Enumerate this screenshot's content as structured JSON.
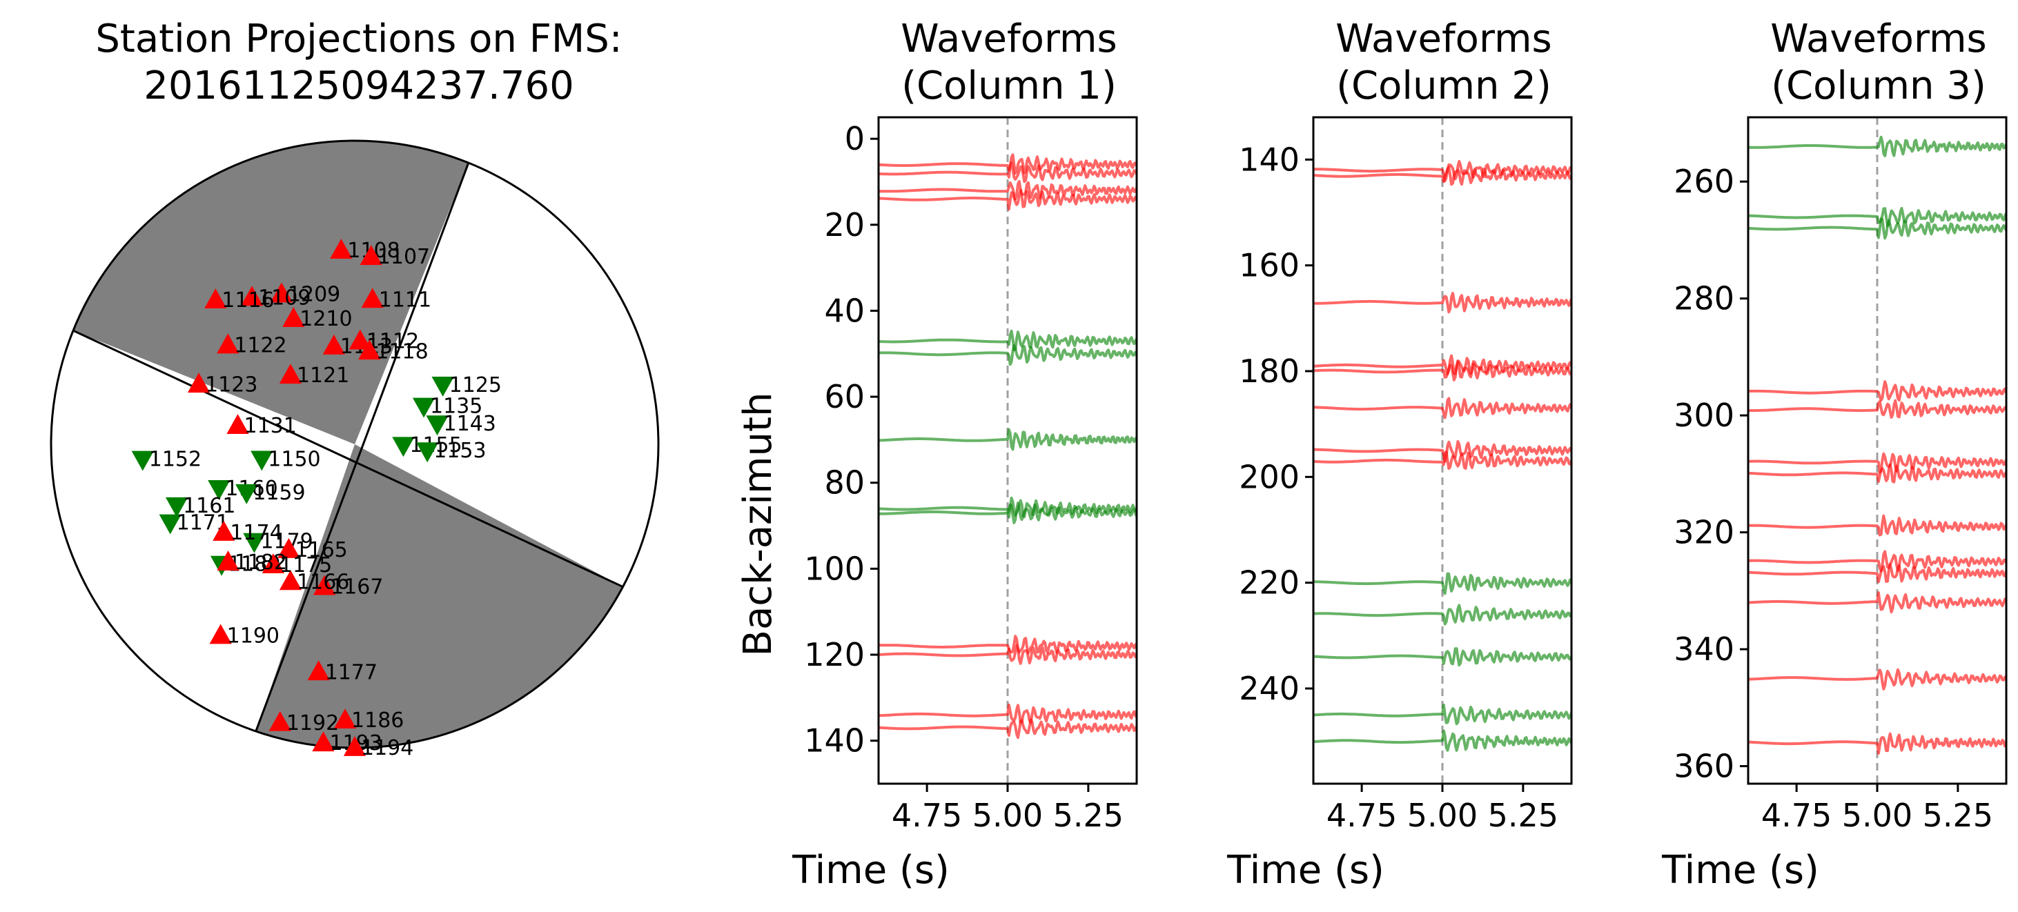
{
  "colors": {
    "compression": "#ff0000",
    "dilatation": "#008000",
    "shade": "#808080",
    "pick_line": "#a0a0a0"
  },
  "beachball": {
    "title": "Station Projections on FMS:",
    "subtitle": "20161125094237.760",
    "stations": [
      {
        "name": "1209",
        "pol": "up",
        "az": -26,
        "r": 0.55
      },
      {
        "name": "1108",
        "pol": "up",
        "az": -4,
        "r": 0.64
      },
      {
        "name": "1107",
        "pol": "up",
        "az": 5,
        "r": 0.62
      },
      {
        "name": "1111",
        "pol": "up",
        "az": 7,
        "r": 0.48
      },
      {
        "name": "1109",
        "pol": "up",
        "az": -35,
        "r": 0.59
      },
      {
        "name": "1210",
        "pol": "up",
        "az": -26,
        "r": 0.46
      },
      {
        "name": "1116",
        "pol": "up",
        "az": -44,
        "r": 0.66
      },
      {
        "name": "1113",
        "pol": "up",
        "az": -12,
        "r": 0.33
      },
      {
        "name": "1112",
        "pol": "up",
        "az": 3,
        "r": 0.34
      },
      {
        "name": "1118",
        "pol": "up",
        "az": 9,
        "r": 0.31
      },
      {
        "name": "1122",
        "pol": "up",
        "az": -52,
        "r": 0.53
      },
      {
        "name": "1121",
        "pol": "up",
        "az": -43,
        "r": 0.31
      },
      {
        "name": "1123",
        "pol": "up",
        "az": -69,
        "r": 0.55
      },
      {
        "name": "1131",
        "pol": "up",
        "az": -81,
        "r": 0.39
      },
      {
        "name": "1125",
        "pol": "down",
        "az": 56,
        "r": 0.35
      },
      {
        "name": "1135",
        "pol": "down",
        "az": 61,
        "r": 0.26
      },
      {
        "name": "1143",
        "pol": "down",
        "az": 76,
        "r": 0.28
      },
      {
        "name": "1155",
        "pol": "down",
        "az": 91,
        "r": 0.16
      },
      {
        "name": "1153",
        "pol": "down",
        "az": 95,
        "r": 0.24
      },
      {
        "name": "1152",
        "pol": "down",
        "az": -94,
        "r": 0.7
      },
      {
        "name": "1150",
        "pol": "down",
        "az": -99,
        "r": 0.31
      },
      {
        "name": "1160",
        "pol": "down",
        "az": -108,
        "r": 0.47
      },
      {
        "name": "1159",
        "pol": "down",
        "az": -114,
        "r": 0.39
      },
      {
        "name": "1161",
        "pol": "down",
        "az": -109,
        "r": 0.62
      },
      {
        "name": "1171",
        "pol": "down",
        "az": -113,
        "r": 0.66
      },
      {
        "name": "1179",
        "pol": "down",
        "az": -134,
        "r": 0.46
      },
      {
        "name": "1180",
        "pol": "down",
        "az": -132,
        "r": 0.59
      },
      {
        "name": "1167",
        "pol": "up",
        "az": -168,
        "r": 0.48
      },
      {
        "name": "1165",
        "pol": "up",
        "az": -148,
        "r": 0.41
      },
      {
        "name": "1166",
        "pol": "up",
        "az": -155,
        "r": 0.5
      },
      {
        "name": "1174",
        "pol": "up",
        "az": -124,
        "r": 0.52
      },
      {
        "name": "1175",
        "pol": "up",
        "az": -146,
        "r": 0.48
      },
      {
        "name": "1177",
        "pol": "up",
        "az": -171,
        "r": 0.76
      },
      {
        "name": "1182",
        "pol": "up",
        "az": -133,
        "r": 0.57
      },
      {
        "name": "1186",
        "pol": "up",
        "az": -178,
        "r": 0.91
      },
      {
        "name": "1192",
        "pol": "up",
        "az": -165,
        "r": 0.95
      },
      {
        "name": "1193",
        "pol": "up",
        "az": -174,
        "r": 0.99
      },
      {
        "name": "1190",
        "pol": "up",
        "az": -145,
        "r": 0.77
      },
      {
        "name": "1194",
        "pol": "up",
        "az": 180,
        "r": 1.0
      }
    ]
  },
  "chart_data": [
    {
      "type": "line",
      "title": "Waveforms",
      "subtitle": "(Column 1)",
      "xlabel": "Time (s)",
      "ylabel": "Back-azimuth",
      "xlim": [
        4.6,
        5.4
      ],
      "ylim": [
        150,
        -5
      ],
      "pick_time": 5.0,
      "xticks": [
        4.75,
        5.0,
        5.25
      ],
      "xtick_labels": [
        "4.75",
        "5.00",
        "5.25"
      ],
      "yticks": [
        0,
        20,
        40,
        60,
        80,
        100,
        120,
        140
      ],
      "yticklabels": [
        "0",
        "20",
        "40",
        "60",
        "80",
        "100",
        "120",
        "140"
      ],
      "traces": [
        {
          "baz": 6,
          "pol": "up"
        },
        {
          "baz": 8,
          "pol": "up"
        },
        {
          "baz": 12,
          "pol": "up"
        },
        {
          "baz": 14,
          "pol": "up"
        },
        {
          "baz": 47,
          "pol": "down"
        },
        {
          "baz": 50,
          "pol": "down"
        },
        {
          "baz": 70,
          "pol": "down"
        },
        {
          "baz": 86,
          "pol": "down"
        },
        {
          "baz": 87,
          "pol": "down"
        },
        {
          "baz": 118,
          "pol": "up"
        },
        {
          "baz": 120,
          "pol": "up"
        },
        {
          "baz": 134,
          "pol": "up"
        },
        {
          "baz": 137,
          "pol": "up"
        }
      ]
    },
    {
      "type": "line",
      "title": "Waveforms",
      "subtitle": "(Column 2)",
      "xlabel": "Time (s)",
      "xlim": [
        4.6,
        5.4
      ],
      "ylim": [
        258,
        132
      ],
      "pick_time": 5.0,
      "xticks": [
        4.75,
        5.0,
        5.25
      ],
      "xtick_labels": [
        "4.75",
        "5.00",
        "5.25"
      ],
      "yticks": [
        140,
        160,
        180,
        200,
        220,
        240
      ],
      "yticklabels": [
        "140",
        "160",
        "180",
        "200",
        "220",
        "240"
      ],
      "traces": [
        {
          "baz": 142,
          "pol": "up"
        },
        {
          "baz": 143,
          "pol": "up"
        },
        {
          "baz": 167,
          "pol": "up"
        },
        {
          "baz": 179,
          "pol": "up"
        },
        {
          "baz": 180,
          "pol": "up"
        },
        {
          "baz": 187,
          "pol": "up"
        },
        {
          "baz": 195,
          "pol": "up"
        },
        {
          "baz": 197,
          "pol": "up"
        },
        {
          "baz": 220,
          "pol": "down"
        },
        {
          "baz": 226,
          "pol": "down"
        },
        {
          "baz": 234,
          "pol": "down"
        },
        {
          "baz": 245,
          "pol": "down"
        },
        {
          "baz": 250,
          "pol": "down"
        }
      ]
    },
    {
      "type": "line",
      "title": "Waveforms",
      "subtitle": "(Column 3)",
      "xlabel": "Time (s)",
      "xlim": [
        4.6,
        5.4
      ],
      "ylim": [
        363,
        249
      ],
      "pick_time": 5.0,
      "xticks": [
        4.75,
        5.0,
        5.25
      ],
      "xtick_labels": [
        "4.75",
        "5.00",
        "5.25"
      ],
      "yticks": [
        260,
        280,
        300,
        320,
        340,
        360
      ],
      "yticklabels": [
        "260",
        "280",
        "300",
        "320",
        "340",
        "360"
      ],
      "traces": [
        {
          "baz": 254,
          "pol": "down"
        },
        {
          "baz": 266,
          "pol": "down"
        },
        {
          "baz": 268,
          "pol": "down"
        },
        {
          "baz": 296,
          "pol": "up"
        },
        {
          "baz": 299,
          "pol": "up"
        },
        {
          "baz": 308,
          "pol": "up"
        },
        {
          "baz": 310,
          "pol": "up"
        },
        {
          "baz": 319,
          "pol": "up"
        },
        {
          "baz": 325,
          "pol": "up"
        },
        {
          "baz": 327,
          "pol": "up"
        },
        {
          "baz": 332,
          "pol": "up"
        },
        {
          "baz": 345,
          "pol": "up"
        },
        {
          "baz": 356,
          "pol": "up"
        }
      ]
    }
  ]
}
